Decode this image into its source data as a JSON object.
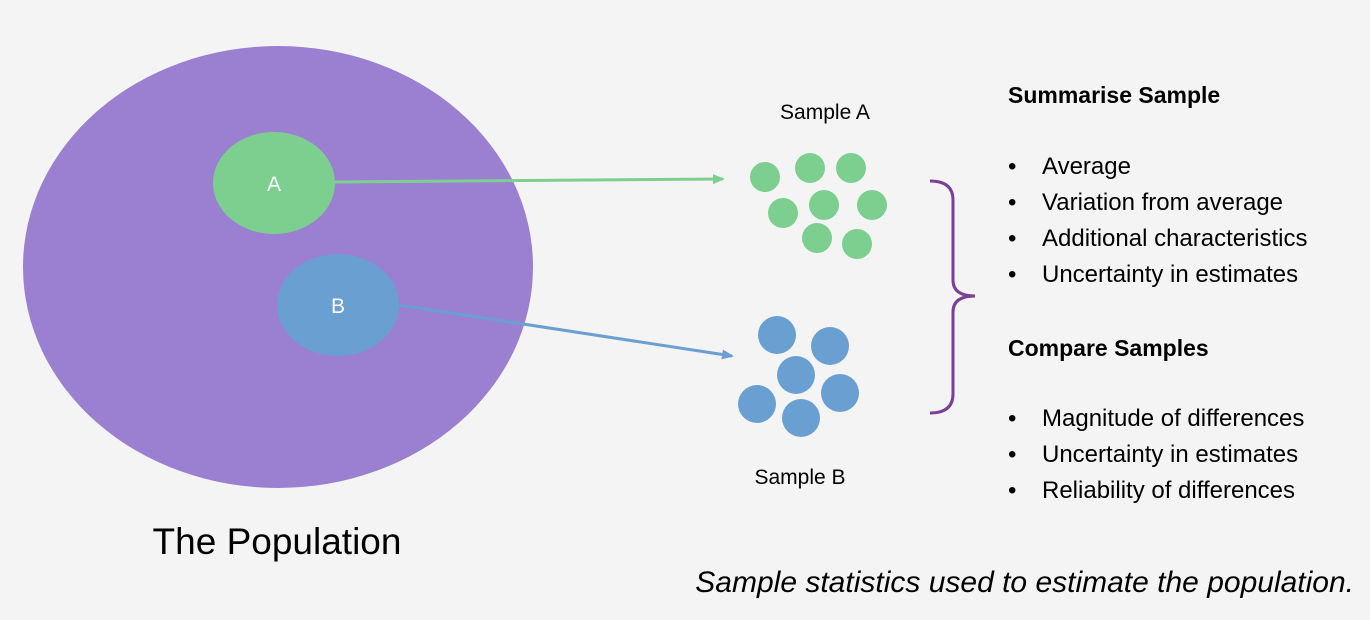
{
  "population": {
    "label": "The Population",
    "color": "#9b7fd0"
  },
  "groups": [
    {
      "id": "a",
      "label": "A",
      "sample_label": "Sample A",
      "color": "#7dcf8f"
    },
    {
      "id": "b",
      "label": "B",
      "sample_label": "Sample B",
      "color": "#6a9fd2"
    }
  ],
  "bracket_color": "#7b3f96",
  "summarise": {
    "heading": "Summarise Sample",
    "items": [
      "Average",
      "Variation from average",
      "Additional characteristics",
      "Uncertainty in estimates"
    ]
  },
  "compare": {
    "heading": "Compare Samples",
    "items": [
      "Magnitude of differences",
      "Uncertainty in estimates",
      "Reliability of differences"
    ]
  },
  "caption": "Sample statistics used to estimate the population."
}
